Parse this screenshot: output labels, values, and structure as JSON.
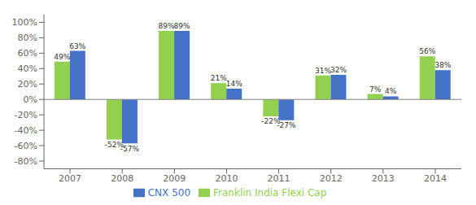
{
  "chart_data": {
    "type": "bar",
    "categories": [
      "2007",
      "2008",
      "2009",
      "2010",
      "2011",
      "2012",
      "2013",
      "2014"
    ],
    "series": [
      {
        "name": "Franklin India Flexi Cap",
        "color": "#92D050",
        "values": [
          49,
          -52,
          89,
          21,
          -22,
          31,
          7,
          56
        ],
        "value_labels": [
          "49%",
          "-52%",
          "89%",
          "21%",
          "-22%",
          "31%",
          "7%",
          "56%"
        ]
      },
      {
        "name": "CNX 500",
        "color": "#4472C4",
        "values": [
          63,
          -57,
          89,
          14,
          -27,
          32,
          4,
          38
        ],
        "value_labels": [
          "63%",
          "-57%",
          "89%",
          "14%",
          "-27%",
          "32%",
          "4%",
          "38%"
        ]
      }
    ],
    "ylim": [
      -90,
      110
    ],
    "yticks": [
      {
        "value": -80,
        "label": "-80%"
      },
      {
        "value": -60,
        "label": "-60%"
      },
      {
        "value": -40,
        "label": "-40%"
      },
      {
        "value": -20,
        "label": "-20%"
      },
      {
        "value": 0,
        "label": "0%"
      },
      {
        "value": 20,
        "label": "20%"
      },
      {
        "value": 40,
        "label": "40%"
      },
      {
        "value": 60,
        "label": "60%"
      },
      {
        "value": 80,
        "label": "80%"
      },
      {
        "value": 100,
        "label": "100%"
      }
    ],
    "grid": false,
    "legend": "bottom",
    "data_labels": true
  }
}
